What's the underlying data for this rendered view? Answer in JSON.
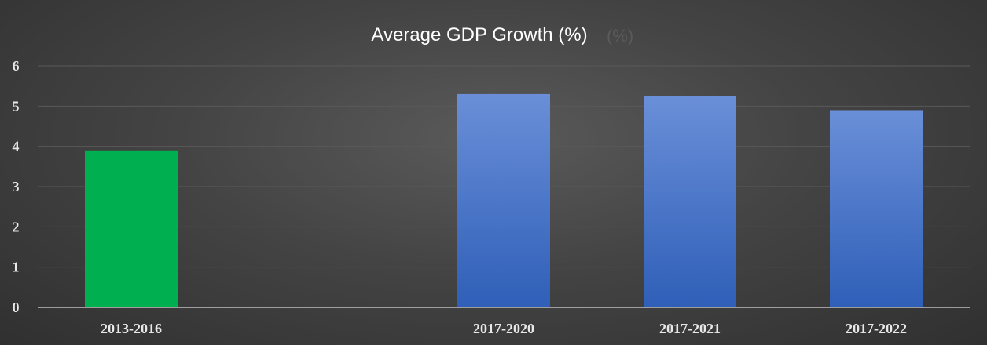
{
  "chart_data": {
    "type": "bar",
    "title": "Average GDP Growth (%)",
    "title_shadow": "(%)",
    "xlabel": "",
    "ylabel": "",
    "categories": [
      "2013-2016",
      "2017-2020",
      "2017-2021",
      "2017-2022"
    ],
    "values": [
      3.9,
      5.3,
      5.25,
      4.9
    ],
    "bar_colors": [
      "#00b050",
      "#4472c4",
      "#4472c4",
      "#4472c4"
    ],
    "ylim": [
      0,
      6
    ],
    "yticks": [
      0,
      1,
      2,
      3,
      4,
      5,
      6
    ],
    "grid": true,
    "legend": "none"
  }
}
